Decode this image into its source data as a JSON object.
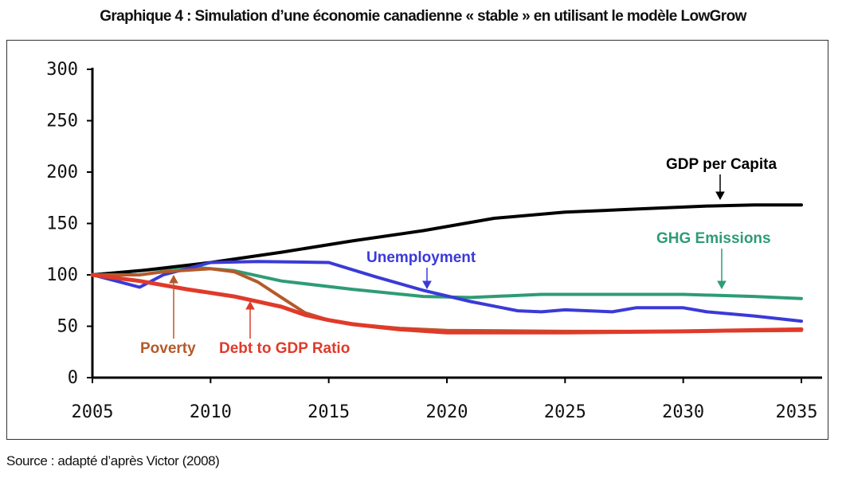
{
  "title": "Graphique 4 : Simulation d’une économie canadienne « stable » en utilisant le modèle LowGrow",
  "source": "Source : adapté d’après Victor (2008)",
  "chart_data": {
    "type": "line",
    "xlim": [
      2005,
      2035
    ],
    "ylim": [
      0,
      300
    ],
    "x_ticks": [
      2005,
      2010,
      2015,
      2020,
      2025,
      2030,
      2035
    ],
    "y_ticks": [
      0,
      50,
      100,
      150,
      200,
      250,
      300
    ],
    "grid": false,
    "series": [
      {
        "name": "GDP per Capita",
        "color": "#000000",
        "points": [
          [
            2005,
            100
          ],
          [
            2007,
            104
          ],
          [
            2010,
            112
          ],
          [
            2013,
            122
          ],
          [
            2016,
            133
          ],
          [
            2019,
            143
          ],
          [
            2022,
            155
          ],
          [
            2025,
            161
          ],
          [
            2028,
            164
          ],
          [
            2031,
            167
          ],
          [
            2033,
            168
          ],
          [
            2035,
            168
          ]
        ]
      },
      {
        "name": "GHG Emissions",
        "color": "#2e9c74",
        "points": [
          [
            2005,
            100
          ],
          [
            2007,
            104
          ],
          [
            2009,
            108
          ],
          [
            2011,
            104
          ],
          [
            2013,
            94
          ],
          [
            2016,
            86
          ],
          [
            2019,
            79
          ],
          [
            2021,
            78
          ],
          [
            2024,
            81
          ],
          [
            2027,
            81
          ],
          [
            2030,
            81
          ],
          [
            2033,
            79
          ],
          [
            2035,
            77
          ]
        ]
      },
      {
        "name": "Unemployment",
        "color": "#3a3ad8",
        "points": [
          [
            2005,
            100
          ],
          [
            2006,
            94
          ],
          [
            2007,
            88
          ],
          [
            2008,
            100
          ],
          [
            2010,
            112
          ],
          [
            2012,
            113
          ],
          [
            2015,
            112
          ],
          [
            2017,
            98
          ],
          [
            2019,
            85
          ],
          [
            2021,
            74
          ],
          [
            2023,
            65
          ],
          [
            2024,
            64
          ],
          [
            2025,
            66
          ],
          [
            2026,
            65
          ],
          [
            2027,
            64
          ],
          [
            2028,
            68
          ],
          [
            2029,
            68
          ],
          [
            2030,
            68
          ],
          [
            2031,
            64
          ],
          [
            2033,
            60
          ],
          [
            2035,
            55
          ]
        ]
      },
      {
        "name": "Poverty",
        "color": "#b45a2a",
        "points": [
          [
            2005,
            100
          ],
          [
            2007,
            100
          ],
          [
            2008,
            103
          ],
          [
            2010,
            106
          ],
          [
            2011,
            103
          ],
          [
            2012,
            93
          ],
          [
            2013,
            78
          ],
          [
            2014,
            63
          ],
          [
            2015,
            56
          ],
          [
            2016,
            52
          ],
          [
            2018,
            48
          ],
          [
            2020,
            46
          ],
          [
            2025,
            45
          ],
          [
            2030,
            45
          ],
          [
            2035,
            46
          ]
        ]
      },
      {
        "name": "Debt to GDP Ratio",
        "color": "#e03a2a",
        "points": [
          [
            2005,
            100
          ],
          [
            2007,
            94
          ],
          [
            2009,
            86
          ],
          [
            2011,
            79
          ],
          [
            2013,
            69
          ],
          [
            2014,
            61
          ],
          [
            2015,
            56
          ],
          [
            2016,
            52
          ],
          [
            2018,
            47
          ],
          [
            2020,
            44
          ],
          [
            2025,
            44
          ],
          [
            2030,
            45
          ],
          [
            2035,
            47
          ]
        ]
      }
    ],
    "annotations": [
      {
        "text": "GDP per Capita",
        "series": "GDP per Capita",
        "color": "#000000"
      },
      {
        "text": "GHG Emissions",
        "series": "GHG Emissions",
        "color": "#2e9c74"
      },
      {
        "text": "Unemployment",
        "series": "Unemployment",
        "color": "#3a3ad8"
      },
      {
        "text": "Poverty",
        "series": "Poverty",
        "color": "#b45a2a"
      },
      {
        "text": "Debt to GDP Ratio",
        "series": "Debt to GDP Ratio",
        "color": "#e03a2a"
      }
    ]
  }
}
